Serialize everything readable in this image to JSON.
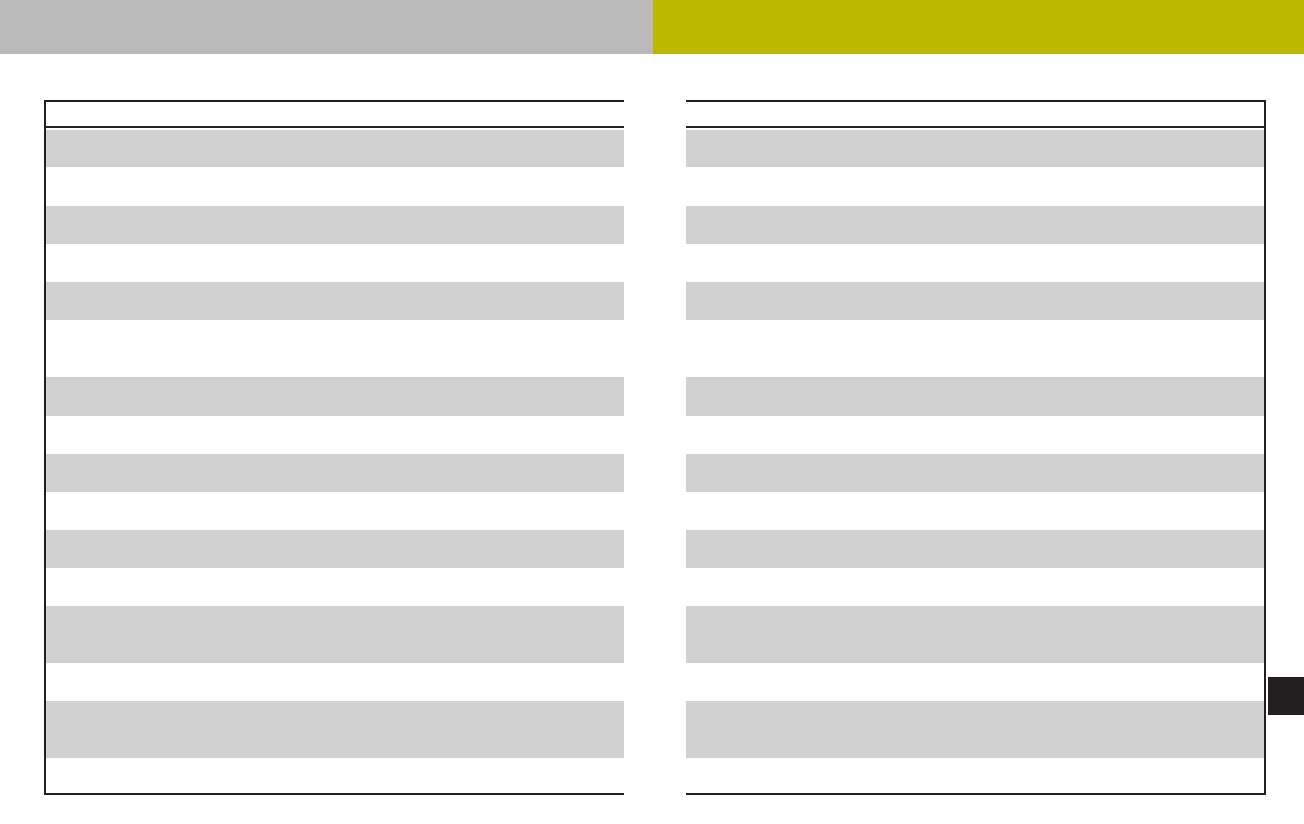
{
  "colors": {
    "header_band_left": "#bababa",
    "header_band_right": "#bab900",
    "row_shaded": "#d1d1d1",
    "row_plain": "#ffffff",
    "rule": "#231f20",
    "thumb_tab": "#231f20"
  },
  "tables": [
    {
      "header": "",
      "rows": [
        "",
        "",
        "",
        "",
        "",
        "",
        "",
        "",
        "",
        "",
        "",
        "",
        "",
        "",
        "",
        "",
        ""
      ]
    },
    {
      "header": "",
      "rows": [
        "",
        "",
        "",
        "",
        "",
        "",
        "",
        "",
        "",
        "",
        "",
        "",
        "",
        "",
        "",
        "",
        ""
      ]
    }
  ]
}
